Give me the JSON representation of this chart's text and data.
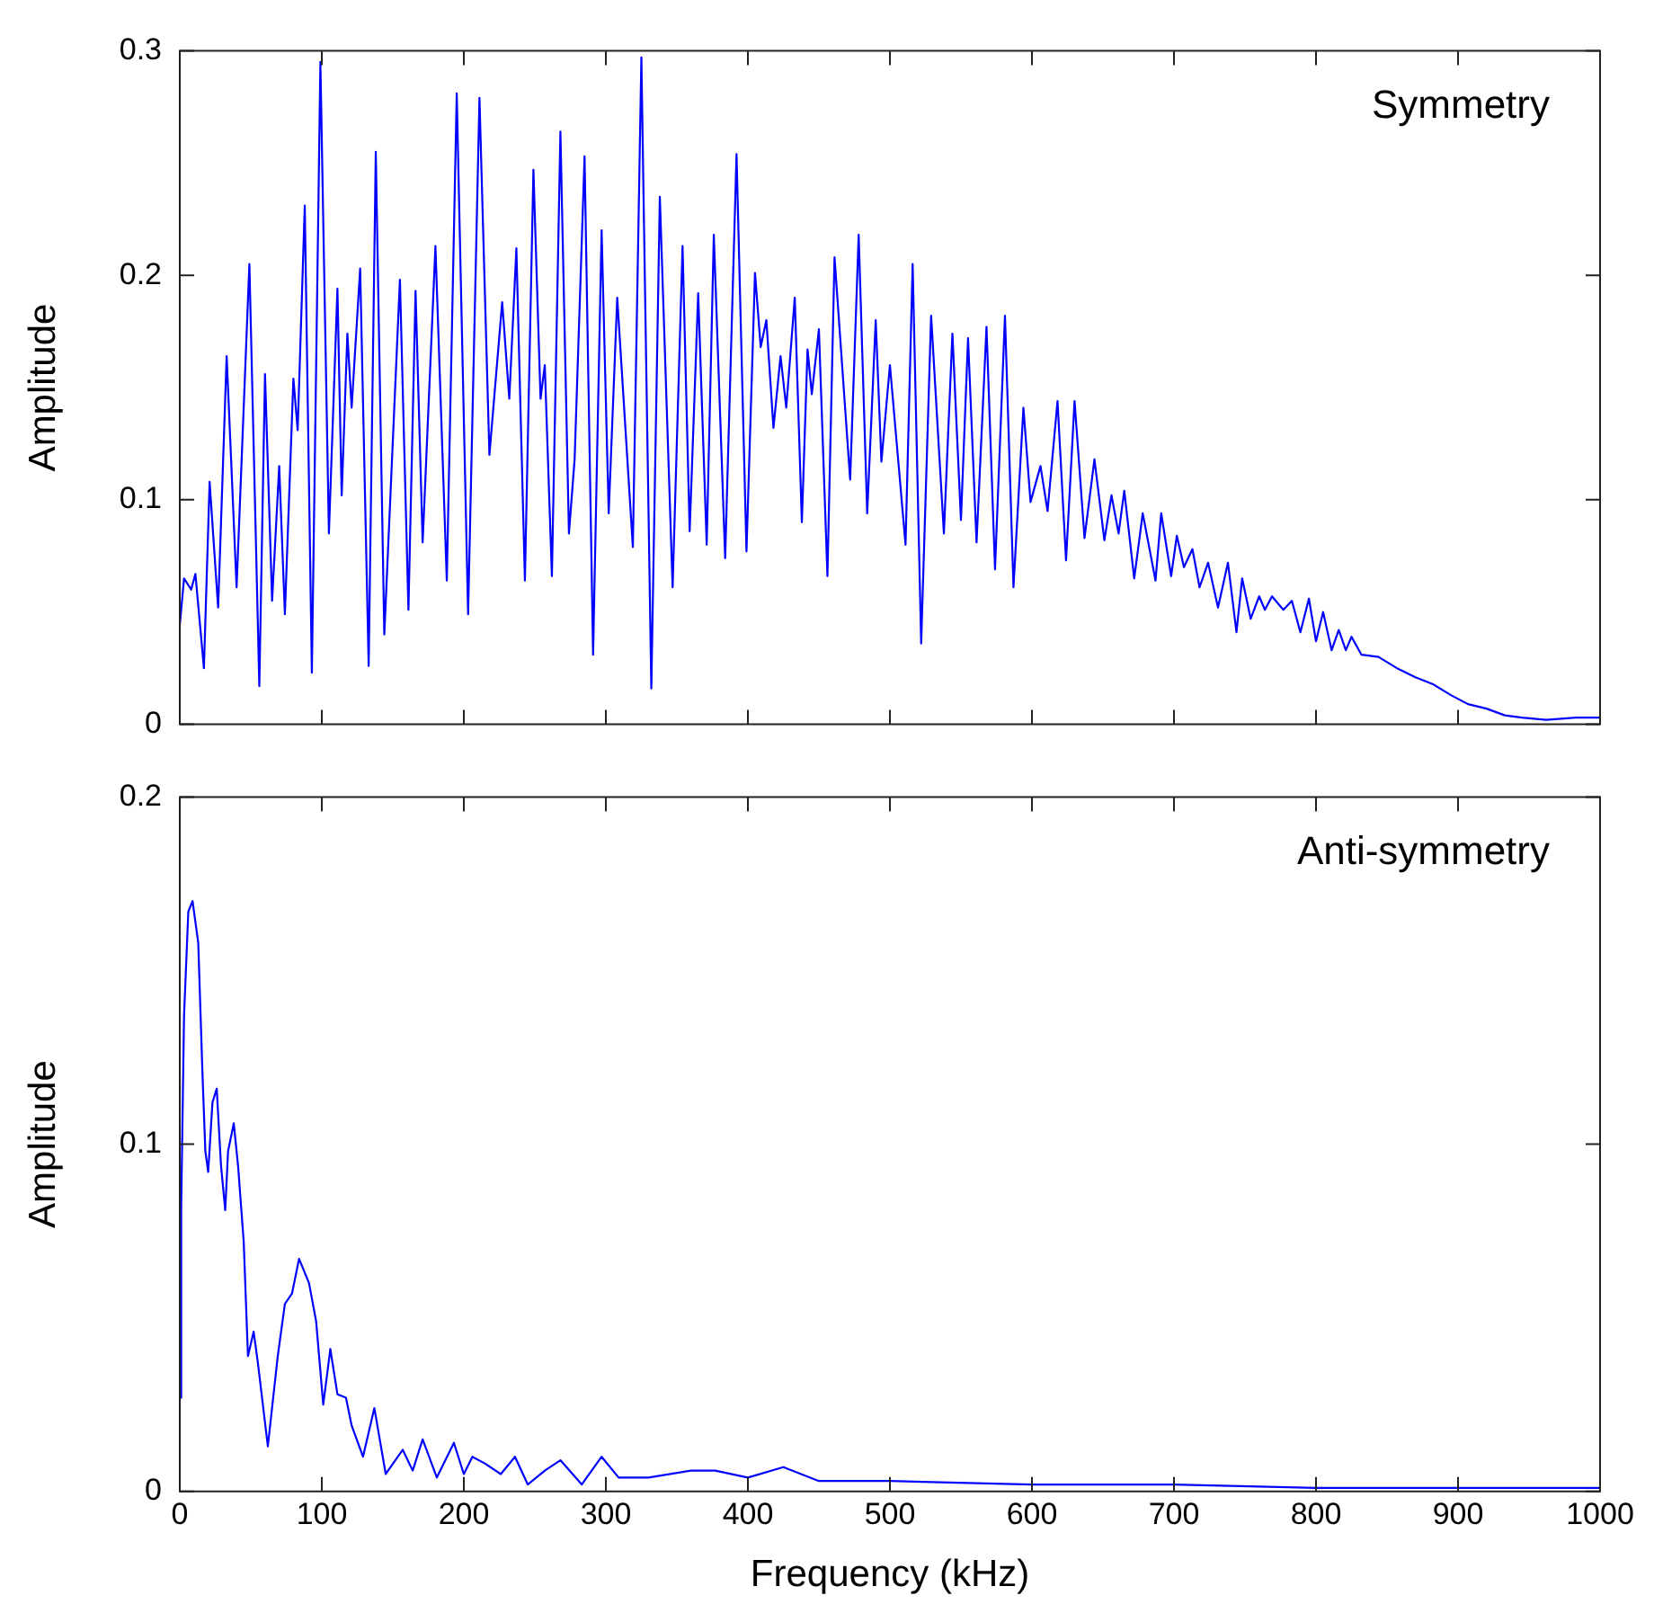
{
  "chart_data": [
    {
      "type": "line",
      "ylabel": "Amplitude",
      "annotations": [
        "Symmetry"
      ],
      "xlim": [
        0,
        1000
      ],
      "xticks": [
        0,
        100,
        200,
        300,
        400,
        500,
        600,
        700,
        800,
        900,
        1000
      ],
      "ylim": [
        0,
        0.3
      ],
      "yticks": [
        0,
        0.1,
        0.2,
        0.3
      ],
      "tick_labels": "y",
      "grid": false,
      "legend": false,
      "marker": "none",
      "line_style": "solid",
      "series": [
        {
          "color": "#0000ff",
          "x": [
            0,
            3,
            8,
            11,
            17,
            21,
            27,
            33,
            40,
            49,
            56,
            60,
            65,
            70,
            74,
            80,
            83,
            88,
            93,
            99,
            105,
            111,
            114,
            118,
            121,
            127,
            133,
            138,
            144,
            155,
            161,
            166,
            171,
            180,
            188,
            195,
            203,
            211,
            218,
            227,
            232,
            237,
            243,
            249,
            254,
            257,
            262,
            268,
            274,
            278,
            285,
            291,
            297,
            302,
            308,
            319,
            325,
            332,
            338,
            347,
            354,
            359,
            365,
            371,
            376,
            384,
            392,
            399,
            405,
            409,
            413,
            418,
            423,
            427,
            433,
            438,
            442,
            445,
            450,
            456,
            461,
            472,
            478,
            484,
            490,
            494,
            500,
            511,
            516,
            522,
            529,
            538,
            544,
            550,
            555,
            561,
            568,
            574,
            581,
            587,
            594,
            599,
            606,
            611,
            618,
            624,
            630,
            637,
            644,
            651,
            656,
            661,
            665,
            672,
            678,
            687,
            691,
            698,
            702,
            707,
            713,
            718,
            724,
            731,
            738,
            744,
            748,
            754,
            760,
            764,
            769,
            777,
            783,
            789,
            795,
            800,
            805,
            811,
            816,
            821,
            825,
            832,
            844,
            857,
            870,
            882,
            895,
            907,
            920,
            933,
            945,
            962,
            983,
            1000
          ],
          "values": [
            0.044,
            0.065,
            0.06,
            0.067,
            0.025,
            0.108,
            0.052,
            0.164,
            0.061,
            0.205,
            0.017,
            0.156,
            0.055,
            0.115,
            0.049,
            0.154,
            0.131,
            0.231,
            0.023,
            0.295,
            0.085,
            0.194,
            0.102,
            0.174,
            0.141,
            0.203,
            0.026,
            0.255,
            0.04,
            0.198,
            0.051,
            0.193,
            0.081,
            0.213,
            0.064,
            0.281,
            0.049,
            0.279,
            0.12,
            0.188,
            0.145,
            0.212,
            0.064,
            0.247,
            0.145,
            0.16,
            0.066,
            0.264,
            0.085,
            0.118,
            0.253,
            0.031,
            0.22,
            0.094,
            0.19,
            0.079,
            0.297,
            0.016,
            0.235,
            0.061,
            0.213,
            0.086,
            0.192,
            0.08,
            0.218,
            0.074,
            0.254,
            0.077,
            0.201,
            0.168,
            0.18,
            0.132,
            0.164,
            0.141,
            0.19,
            0.09,
            0.167,
            0.147,
            0.176,
            0.066,
            0.208,
            0.109,
            0.218,
            0.094,
            0.18,
            0.117,
            0.16,
            0.08,
            0.205,
            0.036,
            0.182,
            0.085,
            0.174,
            0.091,
            0.172,
            0.081,
            0.177,
            0.069,
            0.182,
            0.061,
            0.141,
            0.099,
            0.115,
            0.095,
            0.144,
            0.073,
            0.144,
            0.083,
            0.118,
            0.082,
            0.102,
            0.085,
            0.104,
            0.065,
            0.094,
            0.064,
            0.094,
            0.066,
            0.084,
            0.07,
            0.078,
            0.061,
            0.072,
            0.052,
            0.072,
            0.041,
            0.065,
            0.047,
            0.057,
            0.051,
            0.057,
            0.051,
            0.055,
            0.041,
            0.056,
            0.037,
            0.05,
            0.033,
            0.042,
            0.033,
            0.039,
            0.031,
            0.03,
            0.025,
            0.021,
            0.018,
            0.013,
            0.009,
            0.007,
            0.004,
            0.003,
            0.002,
            0.003,
            0.003
          ]
        }
      ]
    },
    {
      "type": "line",
      "xlabel": "Frequency (kHz)",
      "ylabel": "Amplitude",
      "annotations": [
        "Anti-symmetry"
      ],
      "xlim": [
        0,
        1000
      ],
      "xticks": [
        0,
        100,
        200,
        300,
        400,
        500,
        600,
        700,
        800,
        900,
        1000
      ],
      "ylim": [
        0,
        0.2
      ],
      "yticks": [
        0,
        0.1,
        0.2
      ],
      "grid": false,
      "legend": false,
      "marker": "none",
      "line_style": "solid",
      "series": [
        {
          "color": "#0000ff",
          "x": [
            0,
            1,
            3,
            6,
            9,
            13,
            16,
            18,
            20,
            23,
            26,
            29,
            32,
            34,
            38,
            41,
            45,
            48,
            52,
            55,
            62,
            69,
            74,
            79,
            84,
            91,
            96,
            101,
            106,
            111,
            117,
            121,
            129,
            137,
            145,
            157,
            164,
            171,
            181,
            193,
            200,
            206,
            215,
            226,
            236,
            245,
            257,
            268,
            283,
            297,
            309,
            330,
            360,
            377,
            400,
            425,
            450,
            500,
            600,
            700,
            800,
            900,
            1000
          ],
          "values": [
            0.027,
            0.082,
            0.137,
            0.167,
            0.17,
            0.158,
            0.12,
            0.098,
            0.092,
            0.112,
            0.116,
            0.094,
            0.081,
            0.098,
            0.106,
            0.094,
            0.072,
            0.039,
            0.046,
            0.037,
            0.013,
            0.039,
            0.054,
            0.057,
            0.067,
            0.06,
            0.049,
            0.025,
            0.041,
            0.028,
            0.027,
            0.019,
            0.01,
            0.024,
            0.005,
            0.012,
            0.006,
            0.015,
            0.004,
            0.014,
            0.005,
            0.01,
            0.008,
            0.005,
            0.01,
            0.002,
            0.006,
            0.009,
            0.002,
            0.01,
            0.004,
            0.004,
            0.006,
            0.006,
            0.004,
            0.007,
            0.003,
            0.003,
            0.002,
            0.002,
            0.001,
            0.001,
            0.001
          ]
        }
      ]
    }
  ]
}
